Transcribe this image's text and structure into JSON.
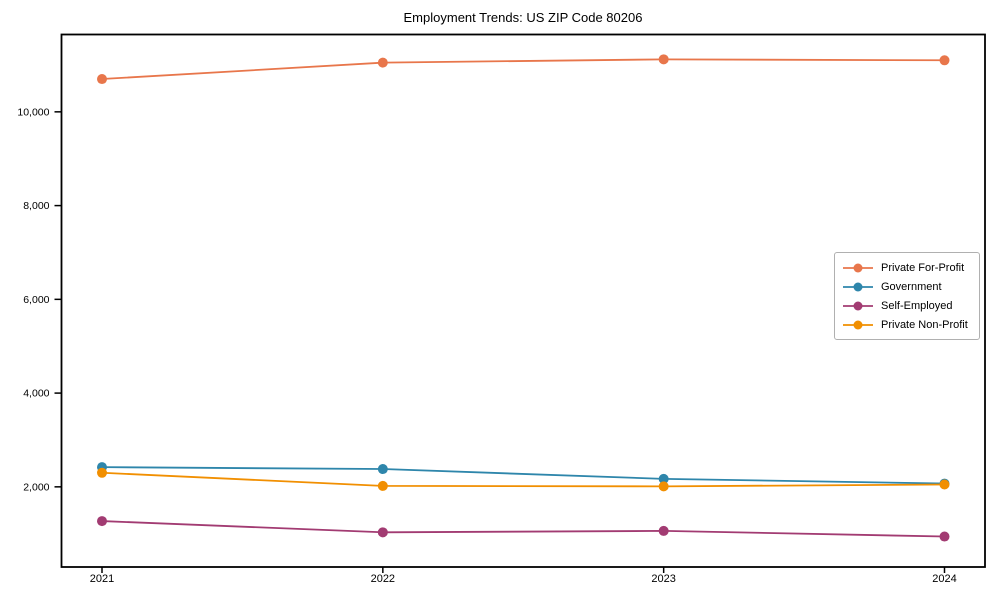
{
  "chart_data": {
    "type": "line",
    "title": "Employment Trends: US ZIP Code 80206",
    "categories": [
      "2021",
      "2022",
      "2023",
      "2024"
    ],
    "series": [
      {
        "name": "Private For-Profit",
        "color": "#E8764B",
        "values": [
          10700,
          11050,
          11120,
          11100
        ]
      },
      {
        "name": "Government",
        "color": "#2E86AB",
        "values": [
          2420,
          2380,
          2170,
          2070
        ]
      },
      {
        "name": "Self-Employed",
        "color": "#A23B72",
        "values": [
          1270,
          1030,
          1060,
          940
        ]
      },
      {
        "name": "Private Non-Profit",
        "color": "#F18F01",
        "values": [
          2300,
          2020,
          2010,
          2050
        ]
      }
    ],
    "yticks": [
      {
        "value": 2000,
        "label": "2,000"
      },
      {
        "value": 4000,
        "label": "4,000"
      },
      {
        "value": 6000,
        "label": "6,000"
      },
      {
        "value": 8000,
        "label": "8,000"
      },
      {
        "value": 10000,
        "label": "10,000"
      }
    ],
    "ylim": [
      290,
      11650
    ],
    "grid": false,
    "legend_position": "right",
    "frame_color": "#000000"
  }
}
